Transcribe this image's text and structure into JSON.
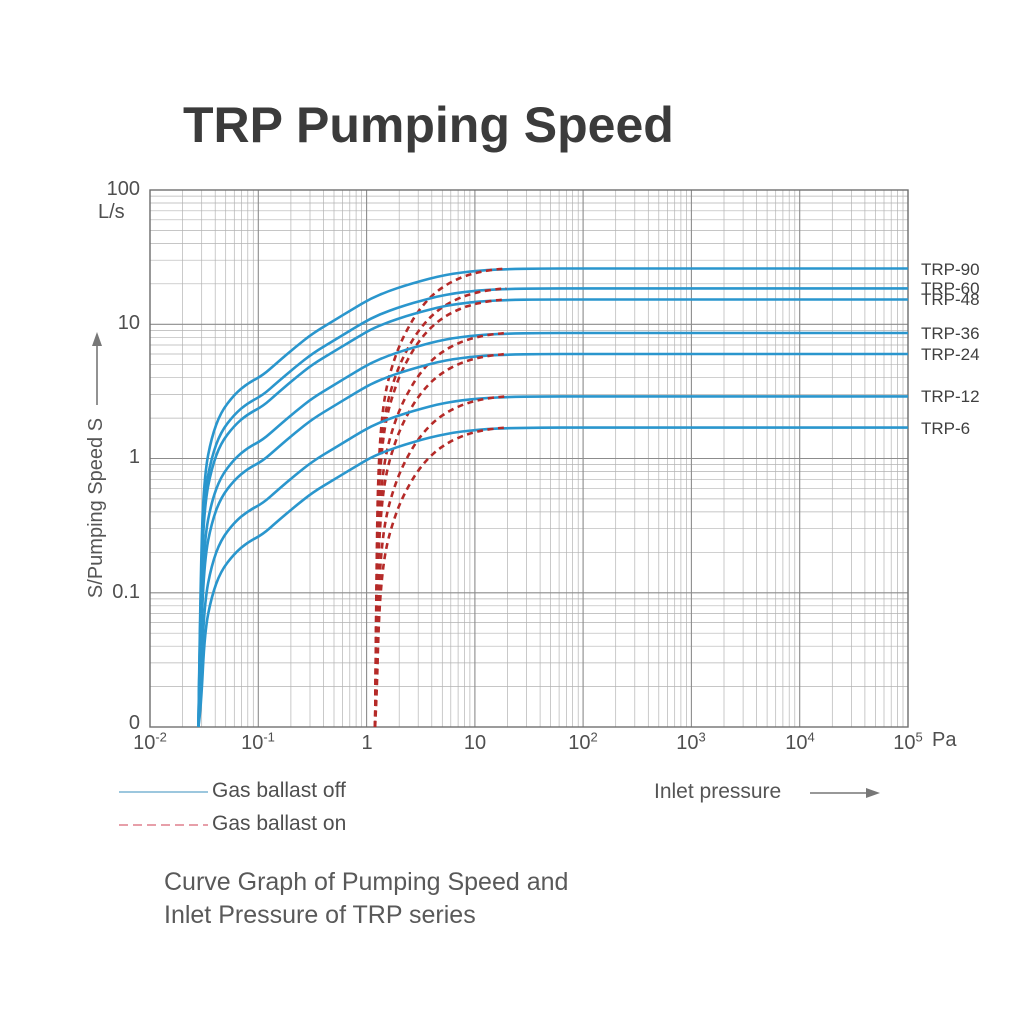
{
  "page": {
    "title": "TRP Pumping Speed"
  },
  "caption": {
    "line1": "Curve Graph of Pumping Speed and",
    "line2": "Inlet Pressure of TRP series"
  },
  "chart_data": {
    "type": "line",
    "title": "TRP Pumping Speed",
    "xlabel": "Inlet pressure",
    "x_unit": "Pa",
    "ylabel": "S/Pumping Speed S",
    "y_unit": "L/s",
    "x_scale": "log",
    "y_scale": "log",
    "xlim": [
      0.01,
      100000
    ],
    "ylim": [
      0.01,
      100
    ],
    "grid": true,
    "x_ticks": [
      {
        "base": "10",
        "exp": "-2"
      },
      {
        "base": "10",
        "exp": "-1"
      },
      {
        "base": "1",
        "exp": ""
      },
      {
        "base": "10",
        "exp": ""
      },
      {
        "base": "10",
        "exp": "2"
      },
      {
        "base": "10",
        "exp": "3"
      },
      {
        "base": "10",
        "exp": "4"
      },
      {
        "base": "10",
        "exp": "5"
      }
    ],
    "y_ticks": [
      "100",
      "10",
      "1",
      "0.1",
      "0"
    ],
    "legend": [
      {
        "label": "Gas ballast off",
        "style": "solid",
        "swatch_color": "#9cc7de"
      },
      {
        "label": "Gas ballast on",
        "style": "dashed",
        "swatch_color": "#e79fa9"
      }
    ],
    "series_colors": {
      "ballast_off": "#2a96cd",
      "ballast_on": "#b52a28"
    },
    "models": [
      {
        "name": "TRP-90",
        "max_speed_L_s": 26.0
      },
      {
        "name": "TRP-60",
        "max_speed_L_s": 18.5
      },
      {
        "name": "TRP-48",
        "max_speed_L_s": 15.3
      },
      {
        "name": "TRP-36",
        "max_speed_L_s": 8.6
      },
      {
        "name": "TRP-24",
        "max_speed_L_s": 6.0
      },
      {
        "name": "TRP-12",
        "max_speed_L_s": 2.9
      },
      {
        "name": "TRP-6",
        "max_speed_L_s": 1.7
      }
    ],
    "ballast_off_shape": {
      "ultimate_pressure_Pa": 0.028,
      "pressures_Pa": [
        0.028,
        0.0295,
        0.032,
        0.037,
        0.045,
        0.06,
        0.08,
        0.11,
        0.15,
        0.22,
        0.32,
        0.5,
        0.75,
        1.1,
        1.6,
        2.3,
        3.2,
        4.5,
        6.5,
        9.0,
        13.0,
        20.0,
        40.0,
        100.0,
        100000.0
      ],
      "fraction_of_max": [
        0.0003,
        0.008,
        0.03,
        0.055,
        0.085,
        0.115,
        0.14,
        0.16,
        0.2,
        0.26,
        0.33,
        0.41,
        0.5,
        0.6,
        0.68,
        0.75,
        0.81,
        0.87,
        0.92,
        0.95,
        0.975,
        0.99,
        1.0,
        1.0,
        1.0
      ]
    },
    "ballast_on_shape": {
      "ultimate_pressure_Pa": 1.2,
      "pressures_Pa": [
        1.2,
        1.24,
        1.3,
        1.4,
        1.55,
        1.8,
        2.1,
        2.5,
        3.0,
        3.7,
        4.6,
        5.8,
        7.5,
        9.5,
        12.0,
        15.5,
        19.5
      ],
      "fraction_of_max": [
        0.0003,
        0.01,
        0.04,
        0.085,
        0.14,
        0.21,
        0.29,
        0.38,
        0.48,
        0.59,
        0.69,
        0.78,
        0.86,
        0.915,
        0.955,
        0.985,
        1.0
      ]
    }
  }
}
